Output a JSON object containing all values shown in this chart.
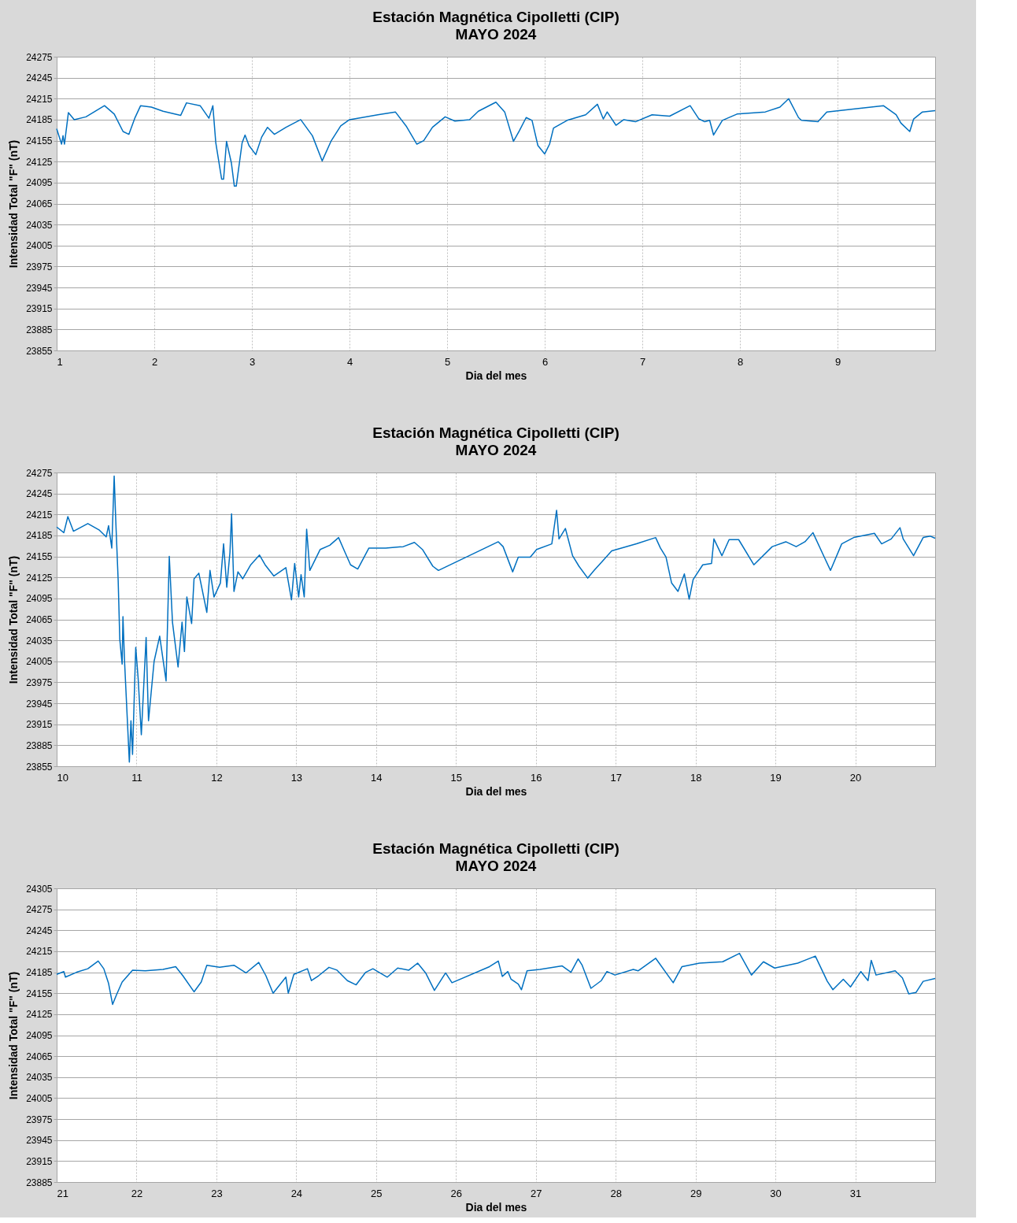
{
  "chart_data": [
    {
      "type": "line",
      "title": "Estación Magnética Cipolletti (CIP)",
      "subtitle": "MAYO 2024",
      "xlabel": "Dia del mes",
      "ylabel": "Intensidad Total \"F\" (nT)",
      "xlim": [
        1,
        10
      ],
      "xticks": [
        1,
        2,
        3,
        4,
        5,
        6,
        7,
        8,
        9
      ],
      "ylim": [
        23855,
        24275
      ],
      "yticks": [
        23855,
        23885,
        23915,
        23945,
        23975,
        24005,
        24035,
        24065,
        24095,
        24125,
        24155,
        24185,
        24215,
        24245,
        24275
      ],
      "grid": true,
      "series": [
        {
          "color": "#0070c0",
          "x": [
            1.0,
            1.05,
            1.065,
            1.08,
            1.12,
            1.18,
            1.3,
            1.49,
            1.59,
            1.68,
            1.74,
            1.8,
            1.86,
            1.97,
            2.09,
            2.27,
            2.33,
            2.47,
            2.56,
            2.6,
            2.63,
            2.69,
            2.71,
            2.74,
            2.79,
            2.82,
            2.84,
            2.9,
            2.93,
            2.97,
            3.04,
            3.1,
            3.16,
            3.23,
            3.35,
            3.5,
            3.62,
            3.72,
            3.81,
            3.91,
            4.0,
            4.13,
            4.29,
            4.47,
            4.58,
            4.69,
            4.76,
            4.85,
            4.98,
            5.08,
            5.23,
            5.32,
            5.5,
            5.59,
            5.68,
            5.74,
            5.81,
            5.87,
            5.93,
            6.0,
            6.05,
            6.09,
            6.23,
            6.42,
            6.54,
            6.6,
            6.64,
            6.73,
            6.81,
            6.93,
            7.1,
            7.28,
            7.49,
            7.58,
            7.64,
            7.69,
            7.73,
            7.82,
            7.97,
            8.26,
            8.41,
            8.5,
            8.6,
            8.63,
            8.8,
            8.89,
            9.16,
            9.47,
            9.6,
            9.65,
            9.74,
            9.78,
            9.87,
            10.0
          ],
          "values": [
            24172,
            24150,
            24162,
            24150,
            24195,
            24185,
            24189,
            24205,
            24193,
            24168,
            24164,
            24187,
            24205,
            24203,
            24197,
            24191,
            24209,
            24205,
            24187,
            24205,
            24152,
            24100,
            24100,
            24154,
            24123,
            24090,
            24090,
            24152,
            24163,
            24148,
            24135,
            24160,
            24174,
            24164,
            24174,
            24185,
            24162,
            24126,
            24154,
            24176,
            24185,
            24188,
            24192,
            24196,
            24176,
            24150,
            24155,
            24174,
            24189,
            24183,
            24185,
            24197,
            24210,
            24196,
            24154,
            24169,
            24188,
            24184,
            24148,
            24136,
            24150,
            24173,
            24184,
            24192,
            24207,
            24186,
            24196,
            24177,
            24185,
            24182,
            24192,
            24190,
            24205,
            24186,
            24182,
            24184,
            24163,
            24184,
            24193,
            24196,
            24203,
            24215,
            24188,
            24184,
            24182,
            24196,
            24200,
            24205,
            24192,
            24180,
            24168,
            24186,
            24196,
            24198
          ]
        }
      ]
    },
    {
      "type": "line",
      "title": "Estación Magnética Cipolletti (CIP)",
      "subtitle": "MAYO 2024",
      "xlabel": "Dia del mes",
      "ylabel": "Intensidad Total \"F\" (nT)",
      "xlim": [
        10,
        21
      ],
      "xticks": [
        10,
        11,
        12,
        13,
        14,
        15,
        16,
        17,
        18,
        19,
        20
      ],
      "ylim": [
        23855,
        24275
      ],
      "yticks": [
        23855,
        23885,
        23915,
        23945,
        23975,
        24005,
        24035,
        24065,
        24095,
        24125,
        24155,
        24185,
        24215,
        24245,
        24275
      ],
      "grid": true,
      "series": [
        {
          "color": "#0070c0",
          "x": [
            10.0,
            10.09,
            10.14,
            10.21,
            10.39,
            10.53,
            10.62,
            10.65,
            10.69,
            10.72,
            10.74,
            10.77,
            10.79,
            10.82,
            10.83,
            10.85,
            10.91,
            10.93,
            10.95,
            10.99,
            11.02,
            11.06,
            11.12,
            11.15,
            11.22,
            11.29,
            11.37,
            11.41,
            11.45,
            11.52,
            11.57,
            11.6,
            11.63,
            11.69,
            11.72,
            11.78,
            11.88,
            11.92,
            11.97,
            12.05,
            12.09,
            12.13,
            12.17,
            12.19,
            12.22,
            12.27,
            12.33,
            12.43,
            12.54,
            12.61,
            12.72,
            12.87,
            12.94,
            12.98,
            13.03,
            13.06,
            13.1,
            13.13,
            13.17,
            13.3,
            13.42,
            13.53,
            13.61,
            13.68,
            13.77,
            13.91,
            14.12,
            14.34,
            14.48,
            14.58,
            14.71,
            14.78,
            15.53,
            15.59,
            15.71,
            15.78,
            15.93,
            16.01,
            16.2,
            16.26,
            16.29,
            16.37,
            16.46,
            16.54,
            16.65,
            16.73,
            16.95,
            17.26,
            17.5,
            17.56,
            17.63,
            17.7,
            17.78,
            17.86,
            17.92,
            17.97,
            18.09,
            18.2,
            18.23,
            18.33,
            18.42,
            18.54,
            18.73,
            18.96,
            19.13,
            19.26,
            19.37,
            19.47,
            19.62,
            19.69,
            19.83,
            19.98,
            20.24,
            20.33,
            20.45,
            20.56,
            20.6,
            20.73,
            20.85,
            20.94,
            21.0
          ],
          "values": [
            24197,
            24189,
            24212,
            24191,
            24202,
            24193,
            24183,
            24199,
            24167,
            24270,
            24206,
            24121,
            24037,
            24001,
            24069,
            24005,
            23861,
            23920,
            23872,
            24025,
            23981,
            23900,
            24039,
            23920,
            24005,
            24041,
            23977,
            24155,
            24061,
            23997,
            24061,
            24019,
            24097,
            24059,
            24123,
            24131,
            24075,
            24135,
            24097,
            24117,
            24173,
            24111,
            24161,
            24216,
            24105,
            24133,
            24123,
            24143,
            24157,
            24143,
            24127,
            24139,
            24093,
            24145,
            24097,
            24129,
            24097,
            24194,
            24135,
            24165,
            24171,
            24182,
            24161,
            24143,
            24137,
            24167,
            24167,
            24169,
            24175,
            24165,
            24141,
            24135,
            24176,
            24169,
            24133,
            24154,
            24154,
            24165,
            24173,
            24221,
            24180,
            24195,
            24156,
            24141,
            24124,
            24135,
            24163,
            24173,
            24182,
            24167,
            24154,
            24117,
            24105,
            24130,
            24094,
            24122,
            24143,
            24145,
            24180,
            24156,
            24179,
            24179,
            24143,
            24169,
            24176,
            24169,
            24176,
            24189,
            24152,
            24135,
            24173,
            24182,
            24188,
            24173,
            24180,
            24196,
            24180,
            24156,
            24182,
            24184,
            24181
          ]
        }
      ]
    },
    {
      "type": "line",
      "title": "Estación Magnética Cipolletti (CIP)",
      "subtitle": "MAYO 2024",
      "xlabel": "Dia del mes",
      "ylabel": "Intensidad Total \"F\" (nT)",
      "xlim": [
        21,
        32
      ],
      "xticks": [
        21,
        22,
        23,
        24,
        25,
        26,
        27,
        28,
        29,
        30,
        31
      ],
      "ylim": [
        23885,
        24305
      ],
      "yticks": [
        23885,
        23915,
        23945,
        23975,
        24005,
        24035,
        24065,
        24095,
        24125,
        24155,
        24185,
        24215,
        24245,
        24275,
        24305
      ],
      "grid": true,
      "series": [
        {
          "color": "#0070c0",
          "x": [
            21.0,
            21.09,
            21.11,
            21.25,
            21.39,
            21.52,
            21.59,
            21.65,
            21.7,
            21.75,
            21.82,
            21.95,
            22.11,
            22.33,
            22.49,
            22.58,
            22.72,
            22.81,
            22.88,
            23.04,
            23.22,
            23.37,
            23.53,
            23.62,
            23.71,
            23.87,
            23.9,
            23.97,
            24.14,
            24.19,
            24.28,
            24.41,
            24.51,
            24.64,
            24.75,
            24.87,
            24.96,
            25.14,
            25.27,
            25.41,
            25.52,
            25.62,
            25.73,
            25.87,
            25.95,
            26.42,
            26.53,
            26.58,
            26.65,
            26.69,
            26.78,
            26.82,
            26.89,
            27.05,
            27.33,
            27.44,
            27.53,
            27.58,
            27.69,
            27.82,
            27.89,
            27.99,
            28.22,
            28.28,
            28.5,
            28.72,
            28.83,
            29.05,
            29.34,
            29.55,
            29.7,
            29.85,
            29.99,
            30.28,
            30.5,
            30.65,
            30.72,
            30.85,
            30.94,
            31.07,
            31.16,
            31.2,
            31.26,
            31.5,
            31.59,
            31.67,
            31.76,
            31.85,
            32.0
          ],
          "values": [
            24182,
            24186,
            24178,
            24185,
            24190,
            24201,
            24190,
            24169,
            24139,
            24153,
            24171,
            24188,
            24187,
            24189,
            24193,
            24180,
            24157,
            24171,
            24195,
            24192,
            24195,
            24184,
            24199,
            24180,
            24155,
            24178,
            24155,
            24182,
            24190,
            24173,
            24180,
            24192,
            24188,
            24173,
            24167,
            24185,
            24190,
            24178,
            24191,
            24188,
            24198,
            24184,
            24159,
            24184,
            24170,
            24193,
            24201,
            24179,
            24186,
            24175,
            24168,
            24160,
            24187,
            24189,
            24194,
            24185,
            24204,
            24195,
            24162,
            24173,
            24186,
            24181,
            24189,
            24187,
            24205,
            24170,
            24193,
            24198,
            24200,
            24212,
            24181,
            24200,
            24191,
            24198,
            24208,
            24172,
            24160,
            24175,
            24164,
            24186,
            24173,
            24202,
            24181,
            24187,
            24177,
            24154,
            24156,
            24172,
            24176
          ]
        }
      ]
    }
  ]
}
